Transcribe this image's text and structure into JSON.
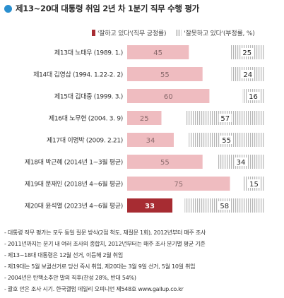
{
  "title": "제13~20대 대통령 취임 2년 차 1분기 직무 수행 평가",
  "legend": {
    "positive": "'잘하고 있다'(직무 긍정률)",
    "negative": "'잘못하고 있다'(부정률, %)"
  },
  "colors": {
    "positive_bar": "#efbcc0",
    "positive_highlight": "#a72c32",
    "negative_hatch": "#b5b5b5",
    "title_dot": "#2a8fcf"
  },
  "chart_data": {
    "type": "bar",
    "orientation": "horizontal",
    "categories": [
      "제13대 노태우 (1989. 1.)",
      "제14대 김영삼 (1994. 1.22-2. 2)",
      "제15대 김대중 (1999. 3.)",
      "제16대 노무현 (2004. 3. 9)",
      "제17대 이명박 (2009. 2.21)",
      "제18대 박근혜 (2014년 1~3월 평균)",
      "제19대 문재인 (2018년 4~6월 평균)",
      "제20대 윤석열 (2023년 4~6월 평균)"
    ],
    "series": [
      {
        "name": "'잘하고 있다'(직무 긍정률)",
        "values": [
          45,
          55,
          60,
          25,
          34,
          55,
          75,
          33
        ]
      },
      {
        "name": "'잘못하고 있다'(부정률, %)",
        "values": [
          25,
          24,
          16,
          57,
          55,
          34,
          15,
          58
        ]
      }
    ],
    "highlight_index": 7,
    "xlim": [
      0,
      100
    ]
  },
  "notes": [
    "- 대통령 직무 평가는 모두 동일 질문 방식(2점 척도, 재질문 1회), 2012년부터 매주 조사",
    "- 2011년까지는 분기 내 여러 조사의 종합치, 2012년부터는 매주 조사 분기별 평균 기준",
    "- 제13~18대 대통령은 12월 선거, 이듬해 2월 취임",
    "- 제19대는 5월 보궐선거로 당선 즉시 취임, 제20대는 3월 9일 선거, 5월 10일 취임",
    "- 2004년은 탄핵소추안 발의 직후(찬성 28%, 반대 54%)",
    "- 괄호 안은 조사 시기. 한국갤럽 데일리 오피니언 제548호 www.gallup.co.kr"
  ]
}
